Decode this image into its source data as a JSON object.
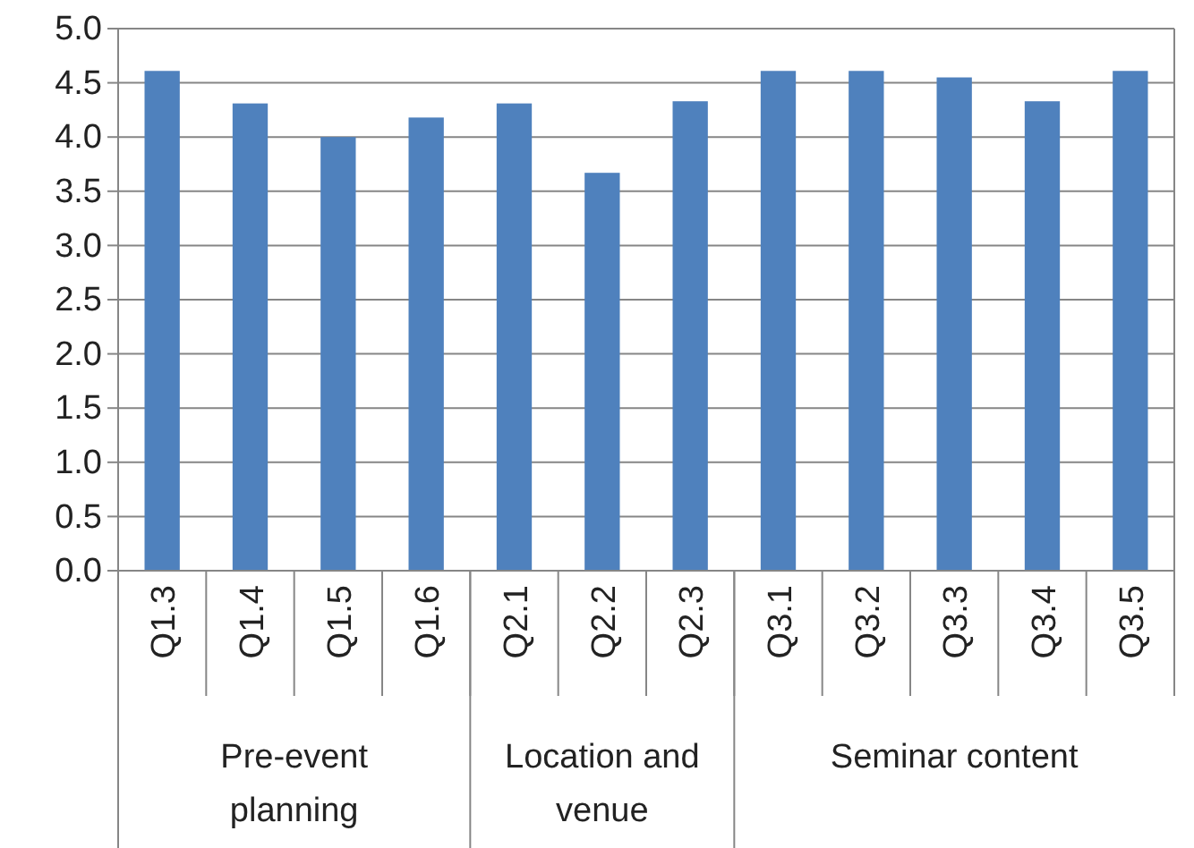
{
  "chart_data": {
    "type": "bar",
    "categories": [
      "Q1.3",
      "Q1.4",
      "Q1.5",
      "Q1.6",
      "Q2.1",
      "Q2.2",
      "Q2.3",
      "Q3.1",
      "Q3.2",
      "Q3.3",
      "Q3.4",
      "Q3.5"
    ],
    "values": [
      4.61,
      4.31,
      4.0,
      4.18,
      4.31,
      3.67,
      4.33,
      4.61,
      4.61,
      4.55,
      4.33,
      4.61
    ],
    "color": "#4f81bd",
    "ylim": [
      0,
      5
    ],
    "yticks": [
      {
        "value": 0,
        "label": "0.0"
      },
      {
        "value": 0.5,
        "label": "0.5"
      },
      {
        "value": 1,
        "label": "1.0"
      },
      {
        "value": 1.5,
        "label": "1.5"
      },
      {
        "value": 2,
        "label": "2.0"
      },
      {
        "value": 2.5,
        "label": "2.5"
      },
      {
        "value": 3,
        "label": "3.0"
      },
      {
        "value": 3.5,
        "label": "3.5"
      },
      {
        "value": 4,
        "label": "4.0"
      },
      {
        "value": 4.5,
        "label": "4.5"
      },
      {
        "value": 5,
        "label": "5.0"
      }
    ],
    "grid": "y",
    "annotations": [
      "Pre-event planning",
      "Location and venue",
      "Seminar content"
    ]
  }
}
